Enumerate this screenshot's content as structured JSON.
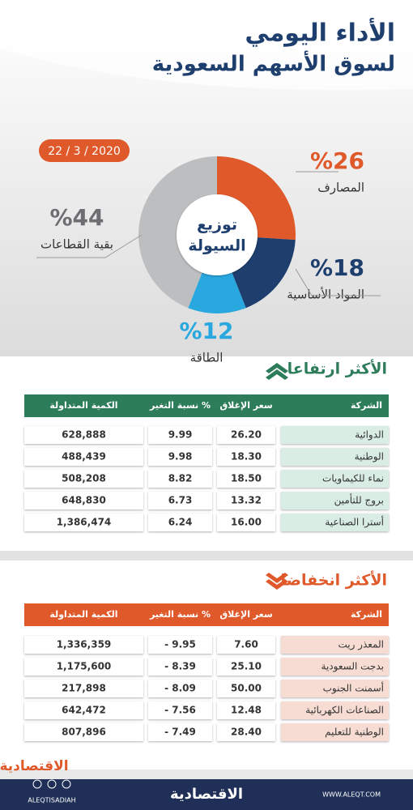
{
  "header": {
    "title": "الأداء اليومي",
    "subtitle": "لسوق الأسهم السعودية",
    "date": "22 / 3 / 2020",
    "logo": "الاقتصادية"
  },
  "chart_data": {
    "type": "donut",
    "center_label": [
      "توزيع",
      "السيولة"
    ],
    "categories": [
      "المصارف",
      "المواد الأساسية",
      "الطاقة",
      "بقية القطاعات"
    ],
    "values": [
      26,
      18,
      12,
      44
    ],
    "value_labels": [
      "%26",
      "%18",
      "%12",
      "%44"
    ],
    "colors": [
      "#e0592a",
      "#1e3f6e",
      "#29a8e0",
      "#bdbec0"
    ]
  },
  "gainers": {
    "title": "الأكثر ارتفاعا",
    "columns": [
      "الشركة",
      "سعر الإغلاق",
      "نسبة التغير %",
      "الكمية المتداولة"
    ],
    "rows": [
      [
        "الدوائية",
        "26.20",
        "9.99",
        "628,888"
      ],
      [
        "الوطنية",
        "18.30",
        "9.98",
        "488,439"
      ],
      [
        "نماء للكيماويات",
        "18.50",
        "8.82",
        "508,208"
      ],
      [
        "بروج للتأمين",
        "13.32",
        "6.73",
        "648,830"
      ],
      [
        "أسترا الصناعية",
        "16.00",
        "6.24",
        "1,386,474"
      ]
    ]
  },
  "losers": {
    "title": "الأكثر انخفاضا",
    "columns": [
      "الشركة",
      "سعر الإغلاق",
      "نسبة التغير %",
      "الكمية المتداولة"
    ],
    "rows": [
      [
        "المعذر ريت",
        "7.60",
        "- 9.95",
        "1,336,359"
      ],
      [
        "بدجت السعودية",
        "25.10",
        "- 8.39",
        "1,175,600"
      ],
      [
        "أسمنت الجنوب",
        "50.00",
        "- 8.09",
        "217,898"
      ],
      [
        "الصناعات الكهربائية",
        "12.48",
        "- 7.56",
        "642,472"
      ],
      [
        "الوطنية للتعليم",
        "28.40",
        "- 7.49",
        "807,896"
      ]
    ]
  },
  "footer": {
    "logo": "الاقتصادية",
    "handle": "ALEQTISADIAH",
    "website": "WWW.ALEQT.COM"
  }
}
